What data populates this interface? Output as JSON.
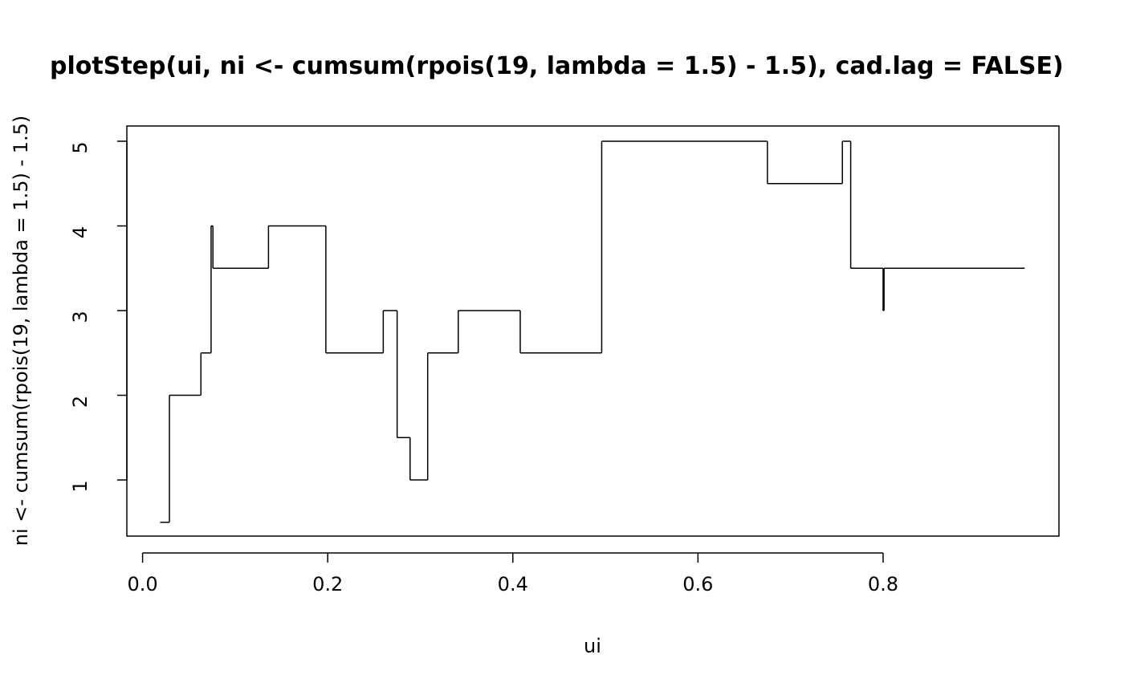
{
  "chart_data": {
    "type": "step",
    "title": "plotStep(ui, ni <- cumsum(rpois(19, lambda = 1.5) - 1.5), cad.lag = FALSE)",
    "x_label": "ui",
    "y_label": "ni <- cumsum(rpois(19, lambda = 1.5) - 1.5)",
    "x": [
      0.019,
      0.029,
      0.063,
      0.074,
      0.076,
      0.136,
      0.198,
      0.26,
      0.275,
      0.289,
      0.308,
      0.341,
      0.408,
      0.496,
      0.675,
      0.756,
      0.765,
      0.8,
      0.801,
      0.946
    ],
    "series": [
      {
        "name": "ni",
        "color": "#000000",
        "values": [
          0.5,
          2,
          2.5,
          4,
          3.5,
          4,
          2.5,
          3,
          1.5,
          1,
          2.5,
          3,
          2.5,
          5,
          4.5,
          5,
          3.5,
          3,
          3.5,
          3.5
        ]
      }
    ],
    "xlim": [
      -0.017,
      0.99
    ],
    "ylim": [
      0.337,
      5.18
    ],
    "xticks": [
      {
        "value": 0,
        "label": "0.0"
      },
      0.2,
      0.4,
      0.6,
      0.8
    ],
    "yticks": [
      1,
      2,
      3,
      4,
      5
    ]
  }
}
